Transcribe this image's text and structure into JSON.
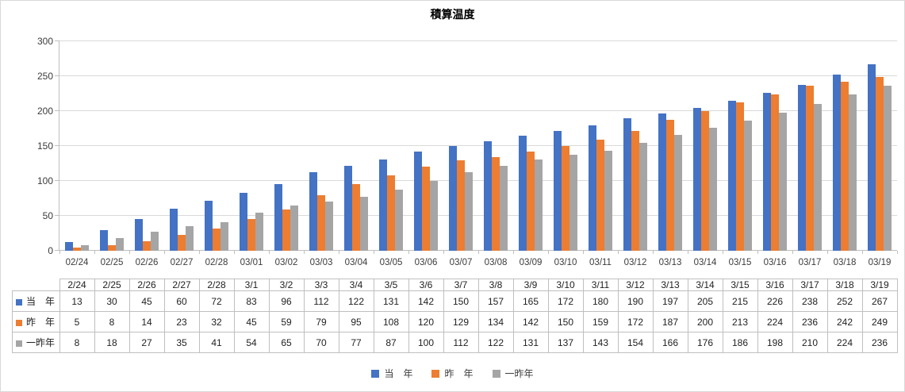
{
  "title": "積算温度",
  "colors": {
    "gridline": "#d9d9d9",
    "axis_line": "#bfbfbf",
    "table_border": "#bfbfbf",
    "label_text": "#3b3b3b"
  },
  "chart_data": {
    "type": "bar",
    "title": "積算温度",
    "categories": [
      "02/24",
      "02/25",
      "02/26",
      "02/27",
      "02/28",
      "03/01",
      "03/02",
      "03/03",
      "03/04",
      "03/05",
      "03/06",
      "03/07",
      "03/08",
      "03/09",
      "03/10",
      "03/11",
      "03/12",
      "03/13",
      "03/14",
      "03/15",
      "03/16",
      "03/17",
      "03/18",
      "03/19"
    ],
    "table_headers": [
      "2/24",
      "2/25",
      "2/26",
      "2/27",
      "2/28",
      "3/1",
      "3/2",
      "3/3",
      "3/4",
      "3/5",
      "3/6",
      "3/7",
      "3/8",
      "3/9",
      "3/10",
      "3/11",
      "3/12",
      "3/13",
      "3/14",
      "3/15",
      "3/16",
      "3/17",
      "3/18",
      "3/19"
    ],
    "series": [
      {
        "name": "当　年",
        "color": "#4472C4",
        "values": [
          13,
          30,
          45,
          60,
          72,
          83,
          96,
          112,
          122,
          131,
          142,
          150,
          157,
          165,
          172,
          180,
          190,
          197,
          205,
          215,
          226,
          238,
          252,
          267
        ]
      },
      {
        "name": "昨　年",
        "color": "#ED7D31",
        "values": [
          5,
          8,
          14,
          23,
          32,
          45,
          59,
          79,
          95,
          108,
          120,
          129,
          134,
          142,
          150,
          159,
          172,
          187,
          200,
          213,
          224,
          236,
          242,
          249
        ]
      },
      {
        "name": "一昨年",
        "color": "#A5A5A5",
        "values": [
          8,
          18,
          27,
          35,
          41,
          54,
          65,
          70,
          77,
          87,
          100,
          112,
          122,
          131,
          137,
          143,
          154,
          166,
          176,
          186,
          198,
          210,
          224,
          236
        ]
      }
    ],
    "xlabel": "",
    "ylabel": "",
    "ylim": [
      0,
      300
    ],
    "y_ticks": [
      300,
      250,
      200,
      150,
      100,
      50,
      0
    ],
    "grid": true,
    "legend_position": "bottom",
    "legend_labels": [
      "当　年",
      "昨　年",
      "一昨年"
    ]
  }
}
